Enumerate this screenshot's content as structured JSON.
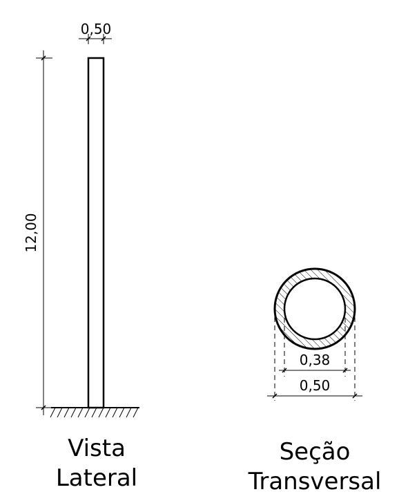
{
  "lateral_view": {
    "top_width_dim": "0,50",
    "height_dim": "12,00",
    "caption_line1": "Vista",
    "caption_line2": "Lateral"
  },
  "cross_section": {
    "inner_diameter_dim": "0,38",
    "outer_diameter_dim": "0,50",
    "caption_line1": "Seção",
    "caption_line2": "Transversal"
  },
  "colors": {
    "line": "#000000",
    "background": "#ffffff"
  }
}
